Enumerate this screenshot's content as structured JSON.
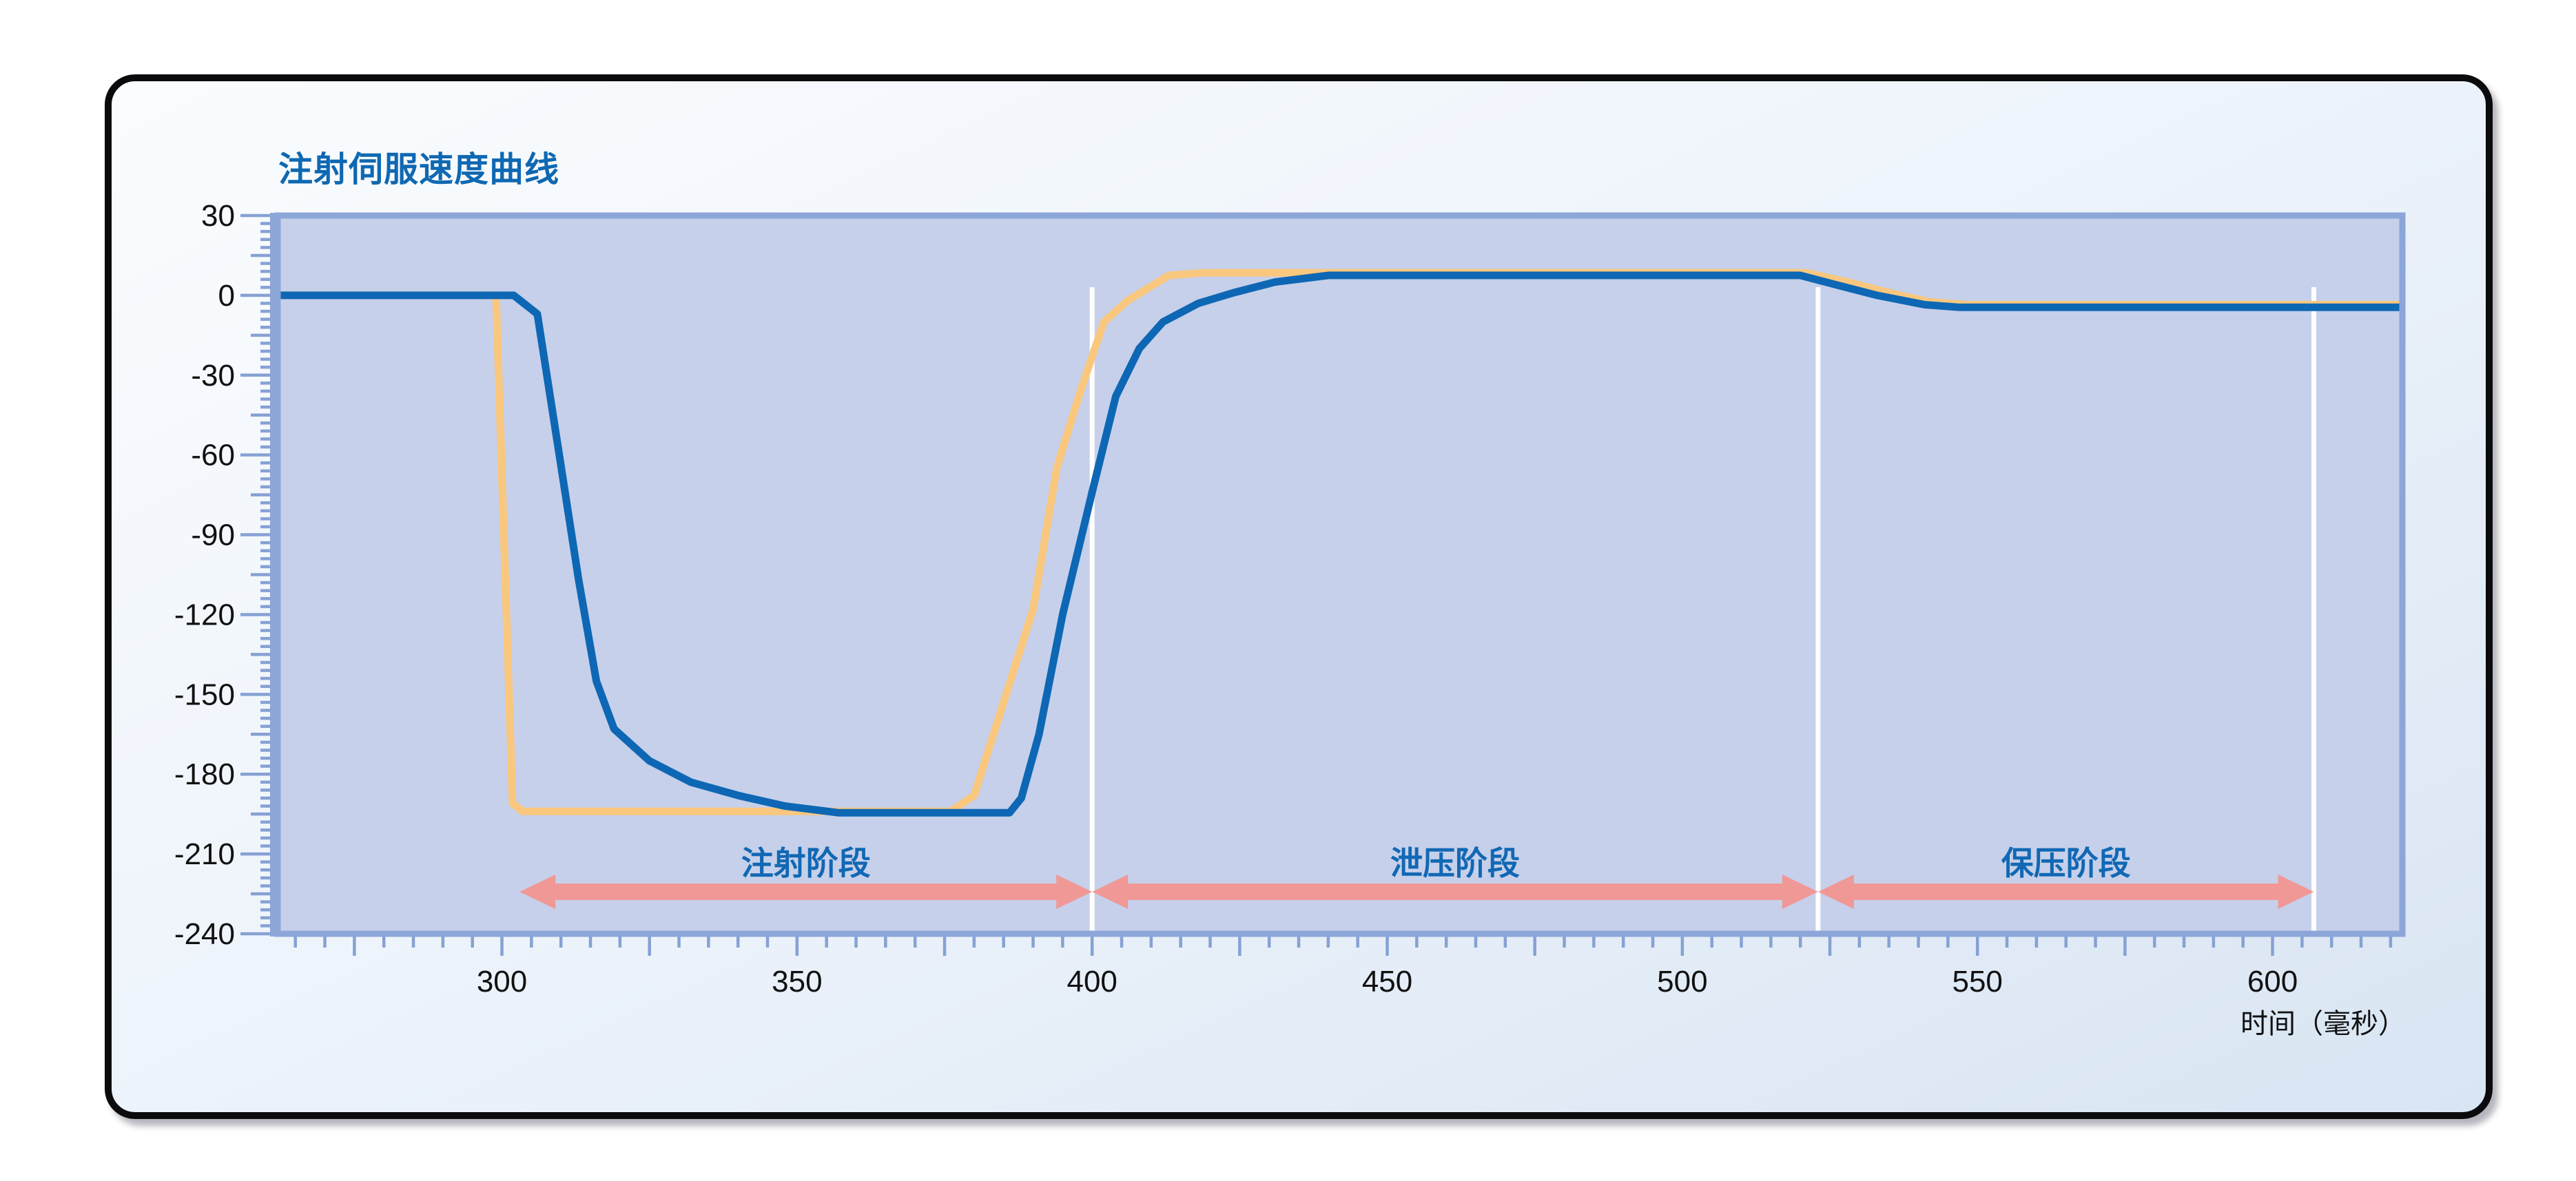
{
  "title": "注射伺服速度曲线",
  "colors": {
    "title_text": "#0f68b2",
    "plot_fill": "#c6d0ea",
    "plot_border": "#8ca6d8",
    "tick": "#86a1d4",
    "tick_label": "#111111",
    "blue_curve": "#0e67b4",
    "orange_curve": "#f9c77d",
    "phase_arrow": "#f09896",
    "phase_label": "#1168b4",
    "divider_line": "#ffffff"
  },
  "chart_data": {
    "type": "line",
    "title": "注射伺服速度曲线",
    "xlabel": "时间（毫秒）",
    "ylabel": "",
    "xlim": [
      262,
      622
    ],
    "ylim": [
      -240,
      30
    ],
    "x_tick_labels": [
      "300",
      "350",
      "400",
      "450",
      "500",
      "550",
      "600"
    ],
    "x_label_step": 50,
    "x_long_tick_step": 25,
    "x_minor_tick_step": 5,
    "y_tick_labels": [
      "30",
      "0",
      "-30",
      "-60",
      "-90",
      "-120",
      "-150",
      "-180",
      "-210",
      "-240"
    ],
    "y_label_step": 30,
    "y_medium_tick_step": 15,
    "y_minor_tick_step": 3,
    "grid": false,
    "legend": false,
    "series": [
      {
        "name": "orange-curve",
        "color": "#f9c77d",
        "points": [
          [
            262,
            0
          ],
          [
            299,
            0
          ],
          [
            301.8,
            -191
          ],
          [
            303.5,
            -194
          ],
          [
            376,
            -194
          ],
          [
            380,
            -188
          ],
          [
            390,
            -118
          ],
          [
            394,
            -65
          ],
          [
            398,
            -36
          ],
          [
            402,
            -10
          ],
          [
            406,
            -2
          ],
          [
            413,
            7.5
          ],
          [
            419,
            8.5
          ],
          [
            521,
            8.5
          ],
          [
            528,
            5
          ],
          [
            535,
            1
          ],
          [
            542,
            -2.5
          ],
          [
            548,
            -3.5
          ],
          [
            622,
            -3.5
          ]
        ]
      },
      {
        "name": "blue-curve",
        "color": "#0e67b4",
        "points": [
          [
            262,
            0
          ],
          [
            302,
            0
          ],
          [
            306,
            -7
          ],
          [
            310,
            -64
          ],
          [
            313,
            -107
          ],
          [
            316,
            -145
          ],
          [
            319,
            -163
          ],
          [
            325,
            -175
          ],
          [
            332,
            -183
          ],
          [
            340,
            -188
          ],
          [
            348,
            -192
          ],
          [
            357,
            -194.5
          ],
          [
            386,
            -194.5
          ],
          [
            388,
            -189
          ],
          [
            391,
            -165
          ],
          [
            395,
            -120
          ],
          [
            400,
            -74
          ],
          [
            404,
            -38
          ],
          [
            408,
            -20
          ],
          [
            412,
            -10
          ],
          [
            418,
            -3
          ],
          [
            424,
            1
          ],
          [
            431,
            5
          ],
          [
            440,
            7.5
          ],
          [
            520,
            7.5
          ],
          [
            526,
            4
          ],
          [
            533,
            0
          ],
          [
            541,
            -3.5
          ],
          [
            547,
            -4.5
          ],
          [
            622,
            -4.5
          ]
        ]
      }
    ],
    "phase_boundaries_ms": [
      400,
      523,
      607
    ],
    "phases": [
      {
        "label": "注射阶段",
        "from_ms": 303,
        "to_ms": 400
      },
      {
        "label": "泄压阶段",
        "from_ms": 400,
        "to_ms": 523
      },
      {
        "label": "保压阶段",
        "from_ms": 523,
        "to_ms": 607
      }
    ]
  }
}
